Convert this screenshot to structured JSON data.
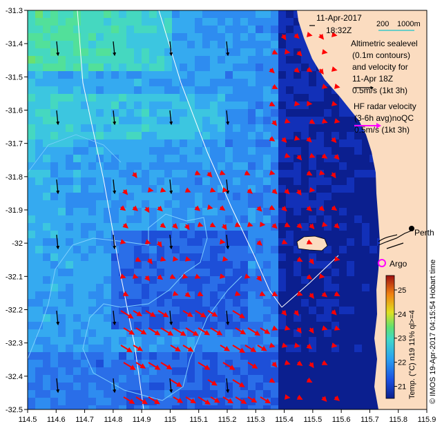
{
  "timestamp": {
    "date": "11-Apr-2017",
    "time": "18:32Z"
  },
  "scale": {
    "contour_a": "200",
    "contour_b": "1000m"
  },
  "altimetry_note": [
    "Altimetric sealevel",
    "(0.1m contours)",
    "and velocity for",
    "11-Apr 18Z",
    "0.5m/s (1kt 3h)"
  ],
  "radar_note": [
    "HF radar velocity",
    "(3-6h avg)noQC",
    "0.5m/s (1kt 3h)"
  ],
  "places": {
    "city": "Perth",
    "argo": "Argo"
  },
  "colorbar": {
    "label": "Temp. (°C) n19 11% ql>=4",
    "ticks": [
      "25",
      "24",
      "23",
      "22",
      "21"
    ],
    "min": 20.5,
    "max": 25.6
  },
  "credit": "© IMOS 19-Apr-2017 04:15:54 Hobart time",
  "axes": {
    "lon_labels": [
      "114.5",
      "114.6",
      "114.7",
      "114.8",
      "114.9",
      "115",
      "115.1",
      "115.2",
      "115.3",
      "115.4",
      "115.5",
      "115.6",
      "115.7",
      "115.8",
      "115.9"
    ],
    "lat_labels": [
      "-31.3",
      "-31.4",
      "-31.5",
      "-31.6",
      "-31.7",
      "-31.8",
      "-31.9",
      "-32",
      "-32.1",
      "-32.2",
      "-32.3",
      "-32.4",
      "-32.5"
    ]
  },
  "colors": {
    "land": "#fbdcc0",
    "radar_arrow": "#ff0000",
    "altimetry_arrow": "#000000",
    "argo_marker": "#ff00ff",
    "contour": "#ffffff"
  }
}
